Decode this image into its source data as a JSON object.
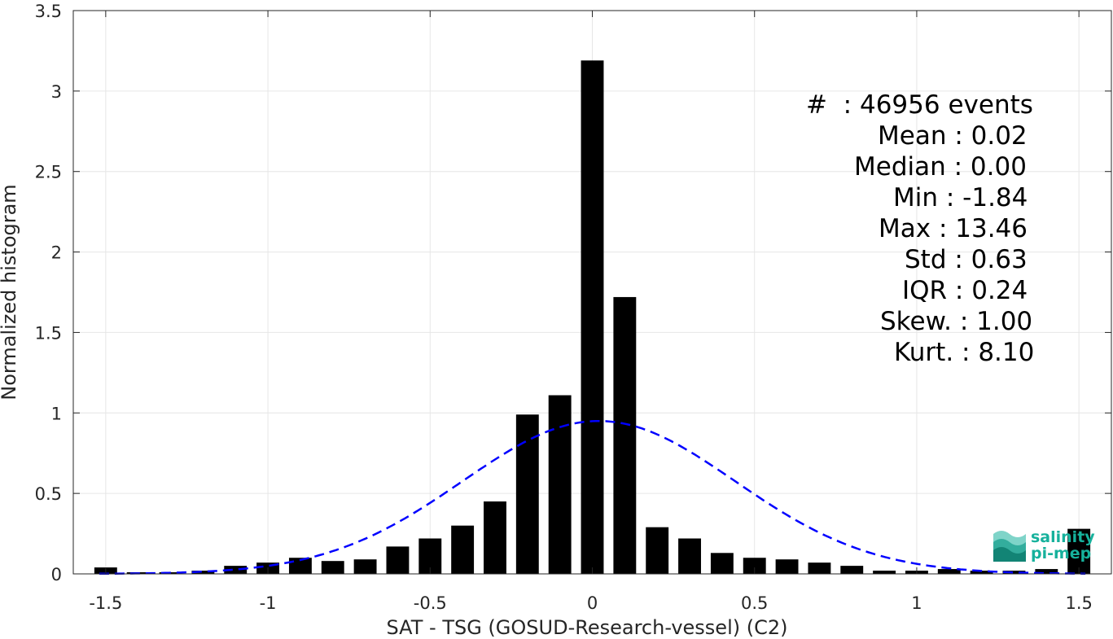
{
  "chart_data": {
    "type": "bar",
    "xlabel": "SAT - TSG (GOSUD-Research-vessel) (C2)",
    "ylabel": "Normalized histogram",
    "xlim": [
      -1.6,
      1.6
    ],
    "ylim": [
      0,
      3.5
    ],
    "xticks": [
      "-1.5",
      "-1",
      "-0.5",
      "0",
      "0.5",
      "1",
      "1.5"
    ],
    "yticks": [
      "0",
      "0.5",
      "1",
      "1.5",
      "2",
      "2.5",
      "3",
      "3.5"
    ],
    "grid": true,
    "bin_width": 0.1,
    "x": [
      -1.5,
      -1.4,
      -1.3,
      -1.2,
      -1.1,
      -1.0,
      -0.9,
      -0.8,
      -0.7,
      -0.6,
      -0.5,
      -0.4,
      -0.3,
      -0.2,
      -0.1,
      0.0,
      0.1,
      0.2,
      0.3,
      0.4,
      0.5,
      0.6,
      0.7,
      0.8,
      0.9,
      1.0,
      1.1,
      1.2,
      1.3,
      1.4,
      1.5
    ],
    "values": [
      0.04,
      0.01,
      0.01,
      0.02,
      0.05,
      0.07,
      0.1,
      0.08,
      0.09,
      0.17,
      0.22,
      0.3,
      0.45,
      0.99,
      1.11,
      3.19,
      1.72,
      0.29,
      0.22,
      0.13,
      0.1,
      0.09,
      0.07,
      0.05,
      0.02,
      0.02,
      0.03,
      0.02,
      0.02,
      0.03,
      0.28
    ],
    "fit": {
      "type": "normal",
      "mean": 0.02,
      "std": 0.42,
      "color": "#0000ff",
      "style": "dashed"
    },
    "bar_color": "#000000"
  },
  "stats": {
    "events": "#  : 46956 events",
    "mean": "Mean : 0.02",
    "median": "Median : 0.00",
    "min": "Min : -1.84",
    "max": "Max : 13.46",
    "std": "Std : 0.63",
    "iqr": "IQR : 0.24",
    "skew": "Skew. : 1.00",
    "kurt": "Kurt. : 8.10"
  },
  "logo": {
    "line1": "salinity",
    "line2": "pi-mep",
    "color": "#16b19c"
  }
}
